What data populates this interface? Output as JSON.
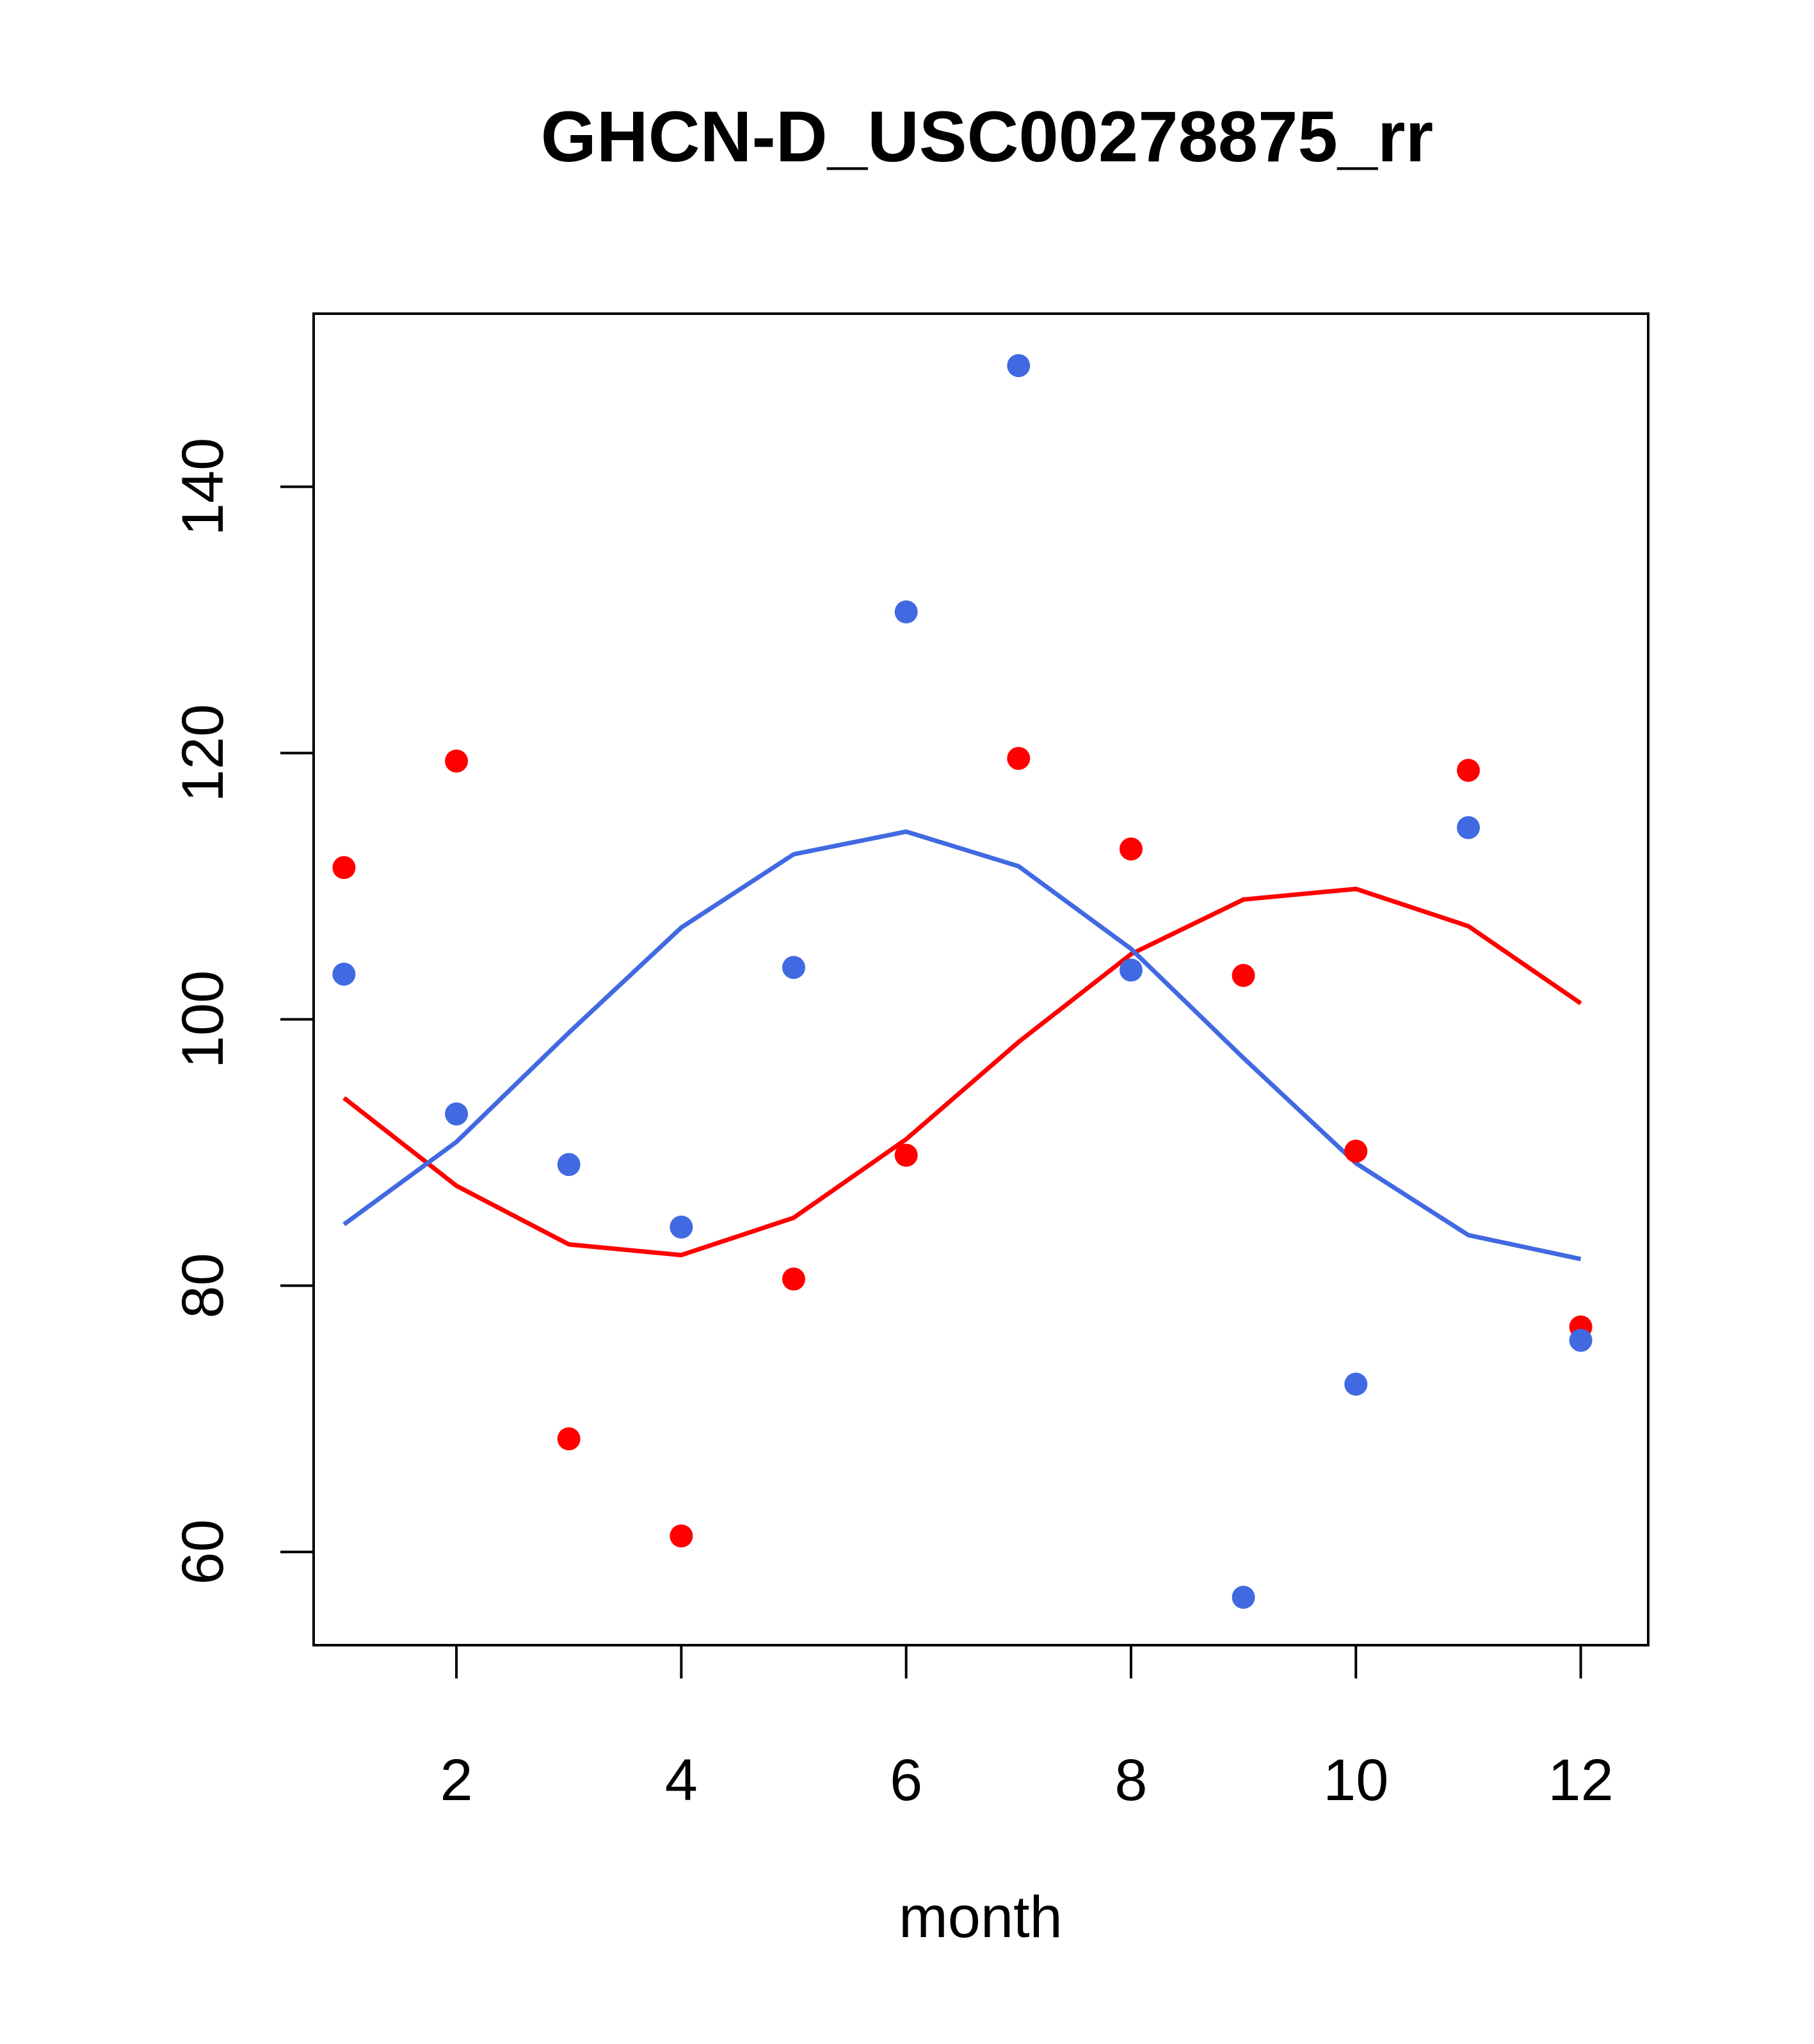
{
  "chart_data": {
    "type": "scatter",
    "title": "GHCN-D_USC00278875_rr",
    "xlabel": "month",
    "ylabel": "",
    "xlim": [
      0.73,
      12.6
    ],
    "ylim": [
      53,
      153
    ],
    "x_ticks": [
      2,
      4,
      6,
      8,
      10,
      12
    ],
    "y_ticks": [
      60,
      80,
      100,
      120,
      140
    ],
    "grid": false,
    "legend": "none",
    "x": [
      1,
      2,
      3,
      4,
      5,
      6,
      7,
      8,
      9,
      10,
      11,
      12
    ],
    "series": [
      {
        "kind": "points",
        "color": "#ff0000",
        "values": [
          111.4,
          119.4,
          68.5,
          61.2,
          80.5,
          89.8,
          119.6,
          112.8,
          103.3,
          90.1,
          118.7,
          76.9
        ]
      },
      {
        "kind": "line",
        "color": "#ff0000",
        "values": [
          94.1,
          87.5,
          83.1,
          82.3,
          85.1,
          91.0,
          98.3,
          104.9,
          109.0,
          109.8,
          107.0,
          101.2
        ]
      },
      {
        "kind": "points",
        "color": "#4169e1",
        "values": [
          103.4,
          92.9,
          89.1,
          84.4,
          103.9,
          130.6,
          149.1,
          103.7,
          56.6,
          72.6,
          114.4,
          75.9
        ]
      },
      {
        "kind": "line",
        "color": "#4169e1",
        "values": [
          84.6,
          90.8,
          99.0,
          106.9,
          112.4,
          114.1,
          111.5,
          105.3,
          97.1,
          89.2,
          83.8,
          82.0
        ]
      }
    ]
  }
}
